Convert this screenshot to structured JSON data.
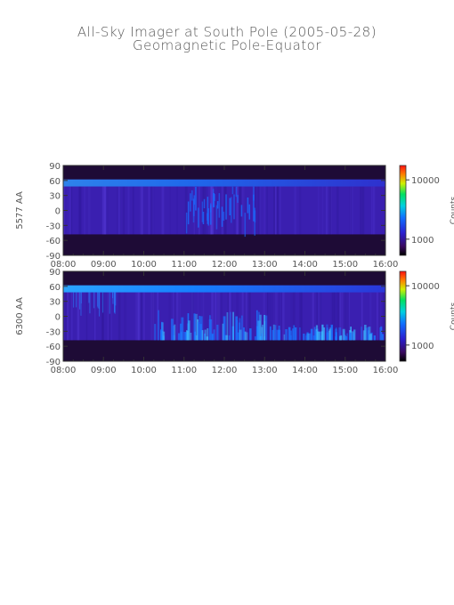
{
  "title": "All-Sky Imager at South Pole (2005-05-28)",
  "subtitle": "Geomagnetic Pole-Equator",
  "colors": {
    "background": "#1a0b3a",
    "band_dark": "#1e0b36",
    "main_blue": "#3a1fb0",
    "pole_cyan": "#1a8cff",
    "frame": "#333333"
  },
  "chart_data": [
    {
      "type": "heatmap",
      "ylabel": "5577 AA",
      "x_ticks": [
        "08:00",
        "09:00",
        "10:00",
        "11:00",
        "12:00",
        "13:00",
        "14:00",
        "15:00",
        "16:00"
      ],
      "y_ticks": [
        "90",
        "60",
        "30",
        "0",
        "-30",
        "-60",
        "-90"
      ],
      "xlim": [
        "08:00",
        "16:00"
      ],
      "ylim": [
        -90,
        90
      ],
      "colorbar_label": "Counts",
      "colorbar_ticks": [
        "10000",
        "1000"
      ],
      "colorbar_scale": "log",
      "bright_band_deg": [
        48,
        62
      ],
      "dark_bands_deg": [
        [
          62,
          90
        ],
        [
          -90,
          -48
        ]
      ]
    },
    {
      "type": "heatmap",
      "ylabel": "6300 AA",
      "x_ticks": [
        "08:00",
        "09:00",
        "10:00",
        "11:00",
        "12:00",
        "13:00",
        "14:00",
        "15:00",
        "16:00"
      ],
      "y_ticks": [
        "90",
        "60",
        "30",
        "0",
        "-30",
        "-60",
        "-90"
      ],
      "xlim": [
        "08:00",
        "16:00"
      ],
      "ylim": [
        -90,
        90
      ],
      "colorbar_label": "Counts",
      "colorbar_ticks": [
        "10000",
        "1000"
      ],
      "colorbar_scale": "log",
      "bright_band_deg": [
        48,
        62
      ],
      "dark_bands_deg": [
        [
          62,
          90
        ],
        [
          -90,
          -48
        ]
      ]
    }
  ]
}
